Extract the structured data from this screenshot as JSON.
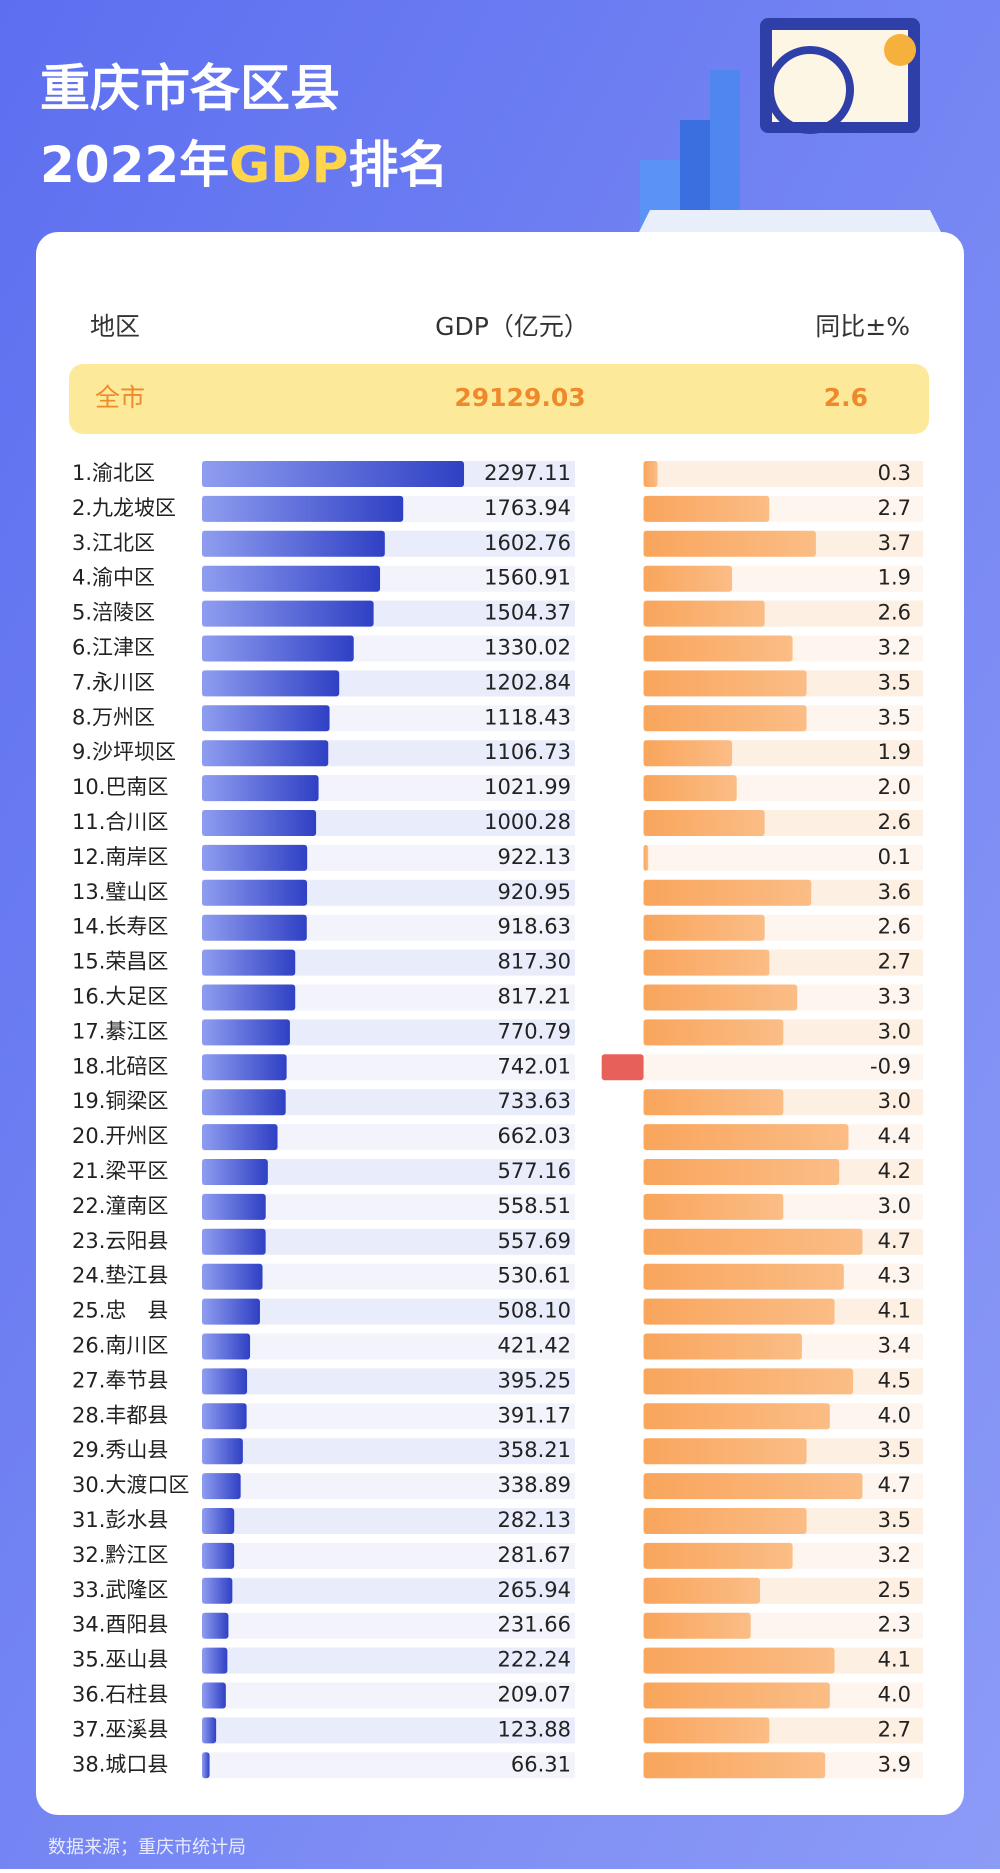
{
  "chart_data": {
    "type": "bar",
    "title": "重庆市各区县",
    "subtitle": [
      "2022年",
      "GDP",
      "排名"
    ],
    "category_label": "地区",
    "source": "数据来源；重庆市统计局",
    "total": {
      "name": "全市",
      "gdp": 29129.03,
      "growth": 2.6
    },
    "categories": [
      "1.渝北区",
      "2.九龙坡区",
      "3.江北区",
      "4.渝中区",
      "5.涪陵区",
      "6.江津区",
      "7.永川区",
      "8.万州区",
      "9.沙坪坝区",
      "10.巴南区",
      "11.合川区",
      "12.南岸区",
      "13.璧山区",
      "14.长寿区",
      "15.荣昌区",
      "16.大足区",
      "17.綦江区",
      "18.北碚区",
      "19.铜梁区",
      "20.开州区",
      "21.梁平区",
      "22.潼南区",
      "23.云阳县",
      "24.垫江县",
      "25.忠　县",
      "26.南川区",
      "27.奉节县",
      "28.丰都县",
      "29.秀山县",
      "30.大渡口区",
      "31.彭水县",
      "32.黔江区",
      "33.武隆区",
      "34.酉阳县",
      "35.巫山县",
      "36.石柱县",
      "37.巫溪县",
      "38.城口县"
    ],
    "series": [
      {
        "name": "GDP（亿元）",
        "color": "#3445c9",
        "values": [
          2297.11,
          1763.94,
          1602.76,
          1560.91,
          1504.37,
          1330.02,
          1202.84,
          1118.43,
          1106.73,
          1021.99,
          1000.28,
          922.13,
          920.95,
          918.63,
          817.3,
          817.21,
          770.79,
          742.01,
          733.63,
          662.03,
          577.16,
          558.51,
          557.69,
          530.61,
          508.1,
          421.42,
          395.25,
          391.17,
          358.21,
          338.89,
          282.13,
          281.67,
          265.94,
          231.66,
          222.24,
          209.07,
          123.88,
          66.31
        ],
        "value_labels": [
          "2297.11",
          "1763.94",
          "1602.76",
          "1560.91",
          "1504.37",
          "1330.02",
          "1202.84",
          "1118.43",
          "1106.73",
          "1021.99",
          "1000.28",
          "922.13",
          "920.95",
          "918.63",
          "817.30",
          "817.21",
          "770.79",
          "742.01",
          "733.63",
          "662.03",
          "577.16",
          "558.51",
          "557.69",
          "530.61",
          "508.10",
          "421.42",
          "395.25",
          "391.17",
          "358.21",
          "338.89",
          "282.13",
          "281.67",
          "265.94",
          "231.66",
          "222.24",
          "209.07",
          "123.88",
          "66.31"
        ]
      },
      {
        "name": "同比±%",
        "color": "#f7a25c",
        "negative_color": "#e8605a",
        "values": [
          0.3,
          2.7,
          3.7,
          1.9,
          2.6,
          3.2,
          3.5,
          3.5,
          1.9,
          2.0,
          2.6,
          0.1,
          3.6,
          2.6,
          2.7,
          3.3,
          3.0,
          -0.9,
          3.0,
          4.4,
          4.2,
          3.0,
          4.7,
          4.3,
          4.1,
          3.4,
          4.5,
          4.0,
          3.5,
          4.7,
          3.5,
          3.2,
          2.5,
          2.3,
          4.1,
          4.0,
          2.7,
          3.9
        ],
        "value_labels": [
          "0.3",
          "2.7",
          "3.7",
          "1.9",
          "2.6",
          "3.2",
          "3.5",
          "3.5",
          "1.9",
          "2.0",
          "2.6",
          "0.1",
          "3.6",
          "2.6",
          "2.7",
          "3.3",
          "3.0",
          "-0.9",
          "3.0",
          "4.4",
          "4.2",
          "3.0",
          "4.7",
          "4.3",
          "4.1",
          "3.4",
          "4.5",
          "4.0",
          "3.5",
          "4.7",
          "3.5",
          "3.2",
          "2.5",
          "2.3",
          "4.1",
          "4.0",
          "2.7",
          "3.9"
        ]
      }
    ],
    "xlim": [
      0,
      3270
    ],
    "x2lim": [
      -1,
      6
    ]
  }
}
